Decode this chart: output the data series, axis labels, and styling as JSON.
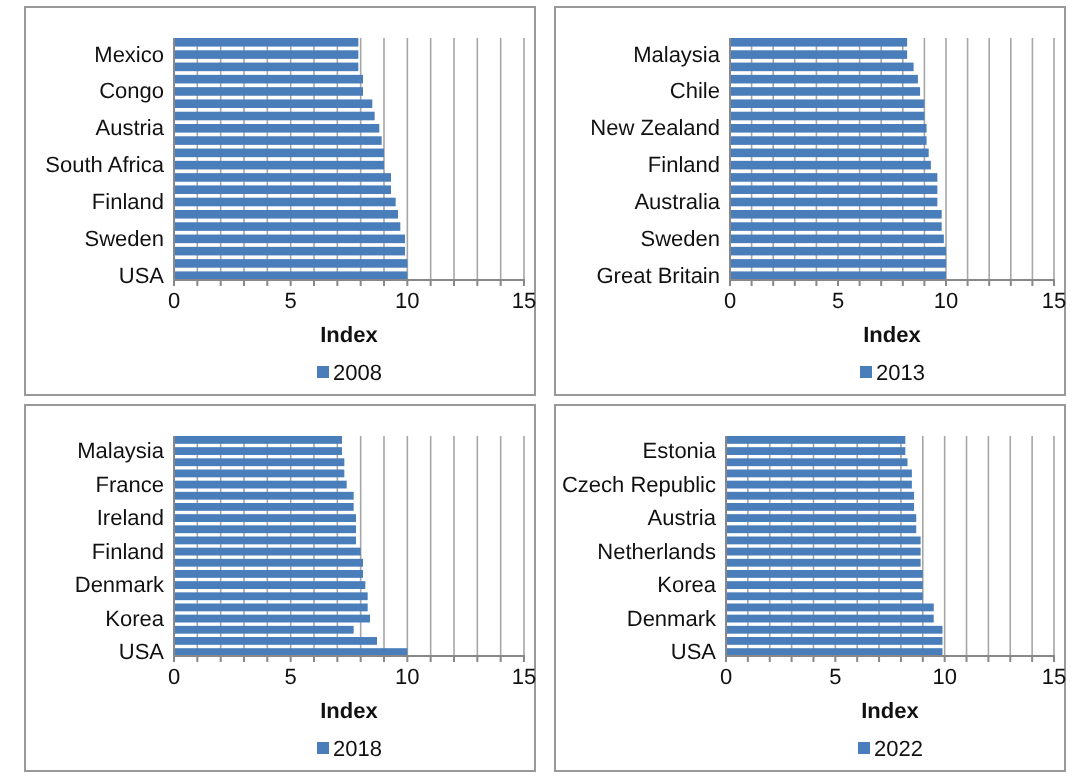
{
  "chart_data": [
    {
      "type": "bar",
      "orientation": "horizontal",
      "xlabel": "Index",
      "legend": "bottom",
      "grid": "x",
      "xlim": [
        0,
        15
      ],
      "xticks": [
        0,
        {
          "value": 1,
          "label": null
        },
        {
          "value": 2,
          "label": null
        },
        {
          "value": 3,
          "label": null
        },
        {
          "value": 4,
          "label": null
        },
        5,
        {
          "value": 6,
          "label": null
        },
        {
          "value": 7,
          "label": null
        },
        {
          "value": 8,
          "label": null
        },
        {
          "value": 9,
          "label": null
        },
        10,
        {
          "value": 11,
          "label": null
        },
        {
          "value": 12,
          "label": null
        },
        {
          "value": 13,
          "label": null
        },
        {
          "value": 14,
          "label": null
        },
        15
      ],
      "categories": [
        null,
        "Mexico",
        null,
        null,
        "Congo",
        null,
        null,
        "Austria",
        null,
        null,
        "South Africa",
        null,
        null,
        "Finland",
        null,
        null,
        "Sweden",
        null,
        null,
        "USA"
      ],
      "series": [
        {
          "name": "2008",
          "color": "#4a7ebb",
          "values": [
            7.9,
            7.9,
            7.9,
            8.1,
            8.1,
            8.5,
            8.6,
            8.8,
            8.9,
            9.0,
            9.0,
            9.3,
            9.3,
            9.5,
            9.6,
            9.7,
            9.9,
            9.9,
            10,
            10
          ]
        }
      ]
    },
    {
      "type": "bar",
      "orientation": "horizontal",
      "xlabel": "Index",
      "legend": "bottom",
      "grid": "x",
      "xlim": [
        0,
        15
      ],
      "xticks": [
        0,
        {
          "value": 1,
          "label": null
        },
        {
          "value": 2,
          "label": null
        },
        {
          "value": 3,
          "label": null
        },
        {
          "value": 4,
          "label": null
        },
        5,
        {
          "value": 6,
          "label": null
        },
        {
          "value": 7,
          "label": null
        },
        {
          "value": 8,
          "label": null
        },
        {
          "value": 9,
          "label": null
        },
        10,
        {
          "value": 11,
          "label": null
        },
        {
          "value": 12,
          "label": null
        },
        {
          "value": 13,
          "label": null
        },
        {
          "value": 14,
          "label": null
        },
        15
      ],
      "categories": [
        null,
        "Malaysia",
        null,
        null,
        "Chile",
        null,
        null,
        "New Zealand",
        null,
        null,
        "Finland",
        null,
        null,
        "Australia",
        null,
        null,
        "Sweden",
        null,
        null,
        "Great Britain"
      ],
      "series": [
        {
          "name": "2013",
          "color": "#4a7ebb",
          "values": [
            8.2,
            8.2,
            8.5,
            8.7,
            8.8,
            9.0,
            9.0,
            9.1,
            9.1,
            9.2,
            9.3,
            9.6,
            9.6,
            9.6,
            9.8,
            9.8,
            9.9,
            10,
            10,
            10
          ]
        }
      ]
    },
    {
      "type": "bar",
      "orientation": "horizontal",
      "xlabel": "Index",
      "legend": "bottom",
      "grid": "x",
      "xlim": [
        0,
        15
      ],
      "xticks": [
        0,
        {
          "value": 1,
          "label": null
        },
        {
          "value": 2,
          "label": null
        },
        {
          "value": 3,
          "label": null
        },
        {
          "value": 4,
          "label": null
        },
        5,
        {
          "value": 6,
          "label": null
        },
        {
          "value": 7,
          "label": null
        },
        {
          "value": 8,
          "label": null
        },
        {
          "value": 9,
          "label": null
        },
        10,
        {
          "value": 11,
          "label": null
        },
        {
          "value": 12,
          "label": null
        },
        {
          "value": 13,
          "label": null
        },
        {
          "value": 14,
          "label": null
        },
        15
      ],
      "categories": [
        null,
        "Malaysia",
        null,
        null,
        "France",
        null,
        null,
        "Ireland",
        null,
        null,
        "Finland",
        null,
        null,
        "Denmark",
        null,
        null,
        "Korea",
        null,
        null,
        "USA"
      ],
      "series": [
        {
          "name": "2018",
          "color": "#4a7ebb",
          "values": [
            7.2,
            7.2,
            7.3,
            7.3,
            7.4,
            7.7,
            7.7,
            7.8,
            7.8,
            7.8,
            8.0,
            8.1,
            8.1,
            8.2,
            8.3,
            8.3,
            8.4,
            7.7,
            8.7,
            10.0
          ]
        }
      ]
    },
    {
      "type": "bar",
      "orientation": "horizontal",
      "xlabel": "Index",
      "legend": "bottom",
      "grid": "x",
      "xlim": [
        0,
        15
      ],
      "xticks": [
        0,
        {
          "value": 1,
          "label": null
        },
        {
          "value": 2,
          "label": null
        },
        {
          "value": 3,
          "label": null
        },
        {
          "value": 4,
          "label": null
        },
        5,
        {
          "value": 6,
          "label": null
        },
        {
          "value": 7,
          "label": null
        },
        {
          "value": 8,
          "label": null
        },
        {
          "value": 9,
          "label": null
        },
        10,
        {
          "value": 11,
          "label": null
        },
        {
          "value": 12,
          "label": null
        },
        {
          "value": 13,
          "label": null
        },
        {
          "value": 14,
          "label": null
        },
        15
      ],
      "categories": [
        null,
        "Estonia",
        null,
        null,
        "Czech Republic",
        null,
        null,
        "Austria",
        null,
        null,
        "Netherlands",
        null,
        null,
        "Korea",
        null,
        null,
        "Denmark",
        null,
        null,
        "USA"
      ],
      "series": [
        {
          "name": "2022",
          "color": "#4a7ebb",
          "values": [
            8.2,
            8.2,
            8.3,
            8.5,
            8.5,
            8.6,
            8.6,
            8.7,
            8.7,
            8.9,
            8.9,
            8.9,
            9.0,
            9.0,
            9.0,
            9.5,
            9.5,
            9.9,
            9.9,
            9.9
          ]
        }
      ]
    }
  ]
}
